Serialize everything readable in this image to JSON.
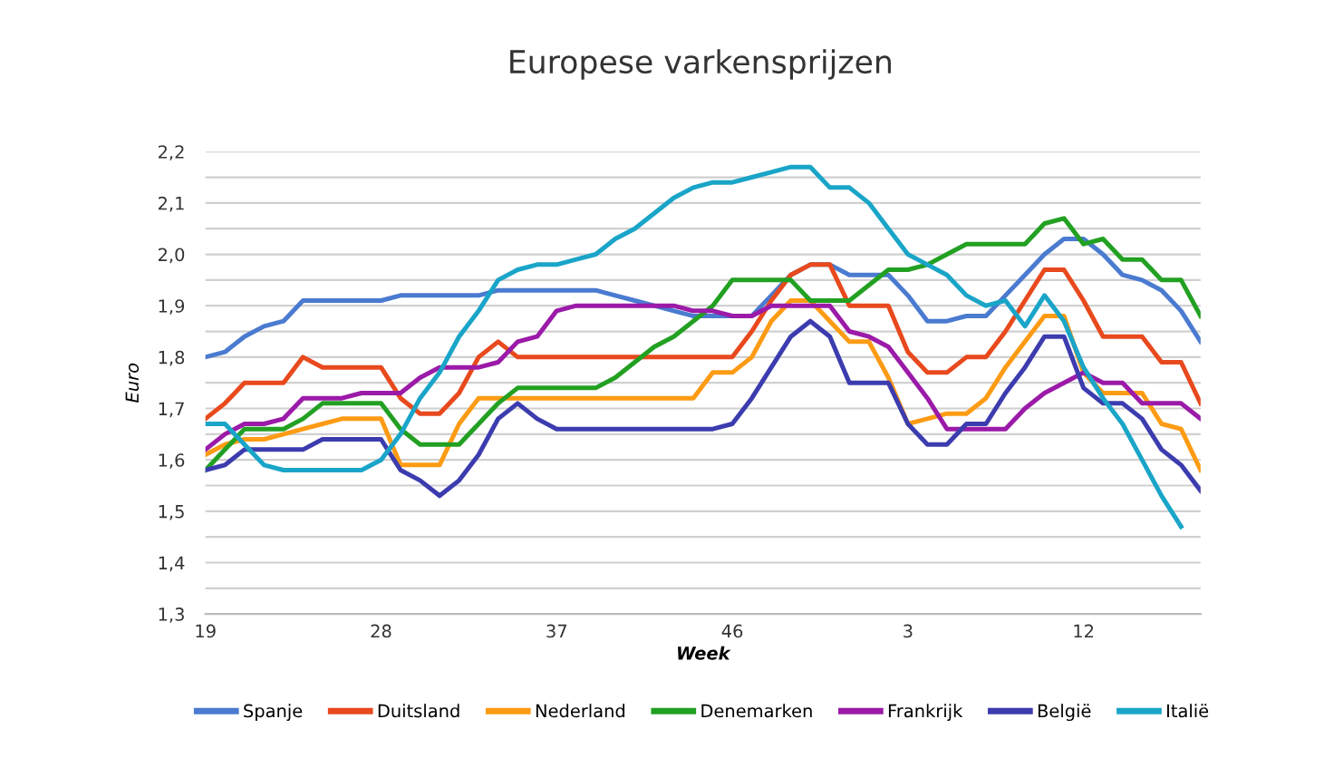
{
  "chart_data": {
    "type": "line",
    "title": "Europese varkensprijzen",
    "xlabel": "Week",
    "ylabel": "Euro",
    "categories": [
      "19",
      null,
      null,
      null,
      null,
      null,
      null,
      null,
      null,
      "28",
      null,
      null,
      null,
      null,
      null,
      null,
      null,
      null,
      "37",
      null,
      null,
      null,
      null,
      null,
      null,
      null,
      null,
      "46",
      null,
      null,
      null,
      null,
      null,
      null,
      null,
      null,
      "3",
      null,
      null,
      null,
      null,
      null,
      null,
      null,
      null,
      "12",
      null,
      null,
      null,
      null,
      null,
      null
    ],
    "ylim": [
      1.3,
      2.2
    ],
    "yticks": [
      {
        "value": 1.3,
        "label": "1,3"
      },
      {
        "value": 1.35,
        "label": null
      },
      {
        "value": 1.4,
        "label": "1,4"
      },
      {
        "value": 1.45,
        "label": null
      },
      {
        "value": 1.5,
        "label": "1,5"
      },
      {
        "value": 1.55,
        "label": null
      },
      {
        "value": 1.6,
        "label": "1,6"
      },
      {
        "value": 1.65,
        "label": null
      },
      {
        "value": 1.7,
        "label": "1,7"
      },
      {
        "value": 1.75,
        "label": null
      },
      {
        "value": 1.8,
        "label": "1,8"
      },
      {
        "value": 1.85,
        "label": null
      },
      {
        "value": 1.9,
        "label": "1,9"
      },
      {
        "value": 1.95,
        "label": null
      },
      {
        "value": 2.0,
        "label": "2,0"
      },
      {
        "value": 2.05,
        "label": null
      },
      {
        "value": 2.1,
        "label": "2,1"
      },
      {
        "value": 2.15,
        "label": null
      },
      {
        "value": 2.2,
        "label": "2,2"
      }
    ],
    "grid": "y",
    "legend": "bottom",
    "marker": "none",
    "line_style": "solid",
    "series": [
      {
        "name": "Spanje",
        "color": "#4a7bd0",
        "values": [
          1.8,
          1.81,
          1.84,
          1.86,
          1.87,
          1.91,
          1.91,
          1.91,
          1.91,
          1.91,
          1.92,
          1.92,
          1.92,
          1.92,
          1.92,
          1.93,
          1.93,
          1.93,
          1.93,
          1.93,
          1.93,
          1.92,
          1.91,
          1.9,
          1.89,
          1.88,
          1.88,
          1.88,
          1.88,
          1.92,
          1.96,
          1.98,
          1.98,
          1.96,
          1.96,
          1.96,
          1.92,
          1.87,
          1.87,
          1.88,
          1.88,
          1.92,
          1.96,
          2.0,
          2.03,
          2.03,
          2.0,
          1.96,
          1.95,
          1.93,
          1.89,
          1.83
        ]
      },
      {
        "name": "Duitsland",
        "color": "#e8491d",
        "values": [
          1.68,
          1.71,
          1.75,
          1.75,
          1.75,
          1.8,
          1.78,
          1.78,
          1.78,
          1.78,
          1.72,
          1.69,
          1.69,
          1.73,
          1.8,
          1.83,
          1.8,
          1.8,
          1.8,
          1.8,
          1.8,
          1.8,
          1.8,
          1.8,
          1.8,
          1.8,
          1.8,
          1.8,
          1.85,
          1.91,
          1.96,
          1.98,
          1.98,
          1.9,
          1.9,
          1.9,
          1.81,
          1.77,
          1.77,
          1.8,
          1.8,
          1.85,
          1.91,
          1.97,
          1.97,
          1.91,
          1.84,
          1.84,
          1.84,
          1.79,
          1.79,
          1.71
        ]
      },
      {
        "name": "Nederland",
        "color": "#fd9b14",
        "values": [
          1.61,
          1.63,
          1.64,
          1.64,
          1.65,
          1.66,
          1.67,
          1.68,
          1.68,
          1.68,
          1.59,
          1.59,
          1.59,
          1.67,
          1.72,
          1.72,
          1.72,
          1.72,
          1.72,
          1.72,
          1.72,
          1.72,
          1.72,
          1.72,
          1.72,
          1.72,
          1.77,
          1.77,
          1.8,
          1.87,
          1.91,
          1.91,
          1.87,
          1.83,
          1.83,
          1.76,
          1.67,
          1.68,
          1.69,
          1.69,
          1.72,
          1.78,
          1.83,
          1.88,
          1.88,
          1.77,
          1.73,
          1.73,
          1.73,
          1.67,
          1.66,
          1.58
        ]
      },
      {
        "name": "Denemarken",
        "color": "#22a022",
        "values": [
          1.58,
          1.62,
          1.66,
          1.66,
          1.66,
          1.68,
          1.71,
          1.71,
          1.71,
          1.71,
          1.66,
          1.63,
          1.63,
          1.63,
          1.67,
          1.71,
          1.74,
          1.74,
          1.74,
          1.74,
          1.74,
          1.76,
          1.79,
          1.82,
          1.84,
          1.87,
          1.9,
          1.95,
          1.95,
          1.95,
          1.95,
          1.91,
          1.91,
          1.91,
          1.94,
          1.97,
          1.97,
          1.98,
          2.0,
          2.02,
          2.02,
          2.02,
          2.02,
          2.06,
          2.07,
          2.02,
          2.03,
          1.99,
          1.99,
          1.95,
          1.95,
          1.88
        ]
      },
      {
        "name": "Frankrijk",
        "color": "#9b1aa8",
        "values": [
          1.62,
          1.65,
          1.67,
          1.67,
          1.68,
          1.72,
          1.72,
          1.72,
          1.73,
          1.73,
          1.73,
          1.76,
          1.78,
          1.78,
          1.78,
          1.79,
          1.83,
          1.84,
          1.89,
          1.9,
          1.9,
          1.9,
          1.9,
          1.9,
          1.9,
          1.89,
          1.89,
          1.88,
          1.88,
          1.9,
          1.9,
          1.9,
          1.9,
          1.85,
          1.84,
          1.82,
          1.77,
          1.72,
          1.66,
          1.66,
          1.66,
          1.66,
          1.7,
          1.73,
          1.75,
          1.77,
          1.75,
          1.75,
          1.71,
          1.71,
          1.71,
          1.68
        ]
      },
      {
        "name": "België",
        "color": "#3c3caf",
        "values": [
          1.58,
          1.59,
          1.62,
          1.62,
          1.62,
          1.62,
          1.64,
          1.64,
          1.64,
          1.64,
          1.58,
          1.56,
          1.53,
          1.56,
          1.61,
          1.68,
          1.71,
          1.68,
          1.66,
          1.66,
          1.66,
          1.66,
          1.66,
          1.66,
          1.66,
          1.66,
          1.66,
          1.67,
          1.72,
          1.78,
          1.84,
          1.87,
          1.84,
          1.75,
          1.75,
          1.75,
          1.67,
          1.63,
          1.63,
          1.67,
          1.67,
          1.73,
          1.78,
          1.84,
          1.84,
          1.74,
          1.71,
          1.71,
          1.68,
          1.62,
          1.59,
          1.54
        ]
      },
      {
        "name": "Italië",
        "color": "#1aa5c8",
        "values": [
          1.67,
          1.67,
          1.63,
          1.59,
          1.58,
          1.58,
          1.58,
          1.58,
          1.58,
          1.6,
          1.65,
          1.72,
          1.77,
          1.84,
          1.89,
          1.95,
          1.97,
          1.98,
          1.98,
          1.99,
          2.0,
          2.03,
          2.05,
          2.08,
          2.11,
          2.13,
          2.14,
          2.14,
          2.15,
          2.16,
          2.17,
          2.17,
          2.13,
          2.13,
          2.1,
          2.05,
          2.0,
          1.98,
          1.96,
          1.92,
          1.9,
          1.91,
          1.86,
          1.92,
          1.87,
          1.78,
          1.72,
          1.67,
          1.6,
          1.53,
          1.47,
          null
        ]
      }
    ]
  }
}
